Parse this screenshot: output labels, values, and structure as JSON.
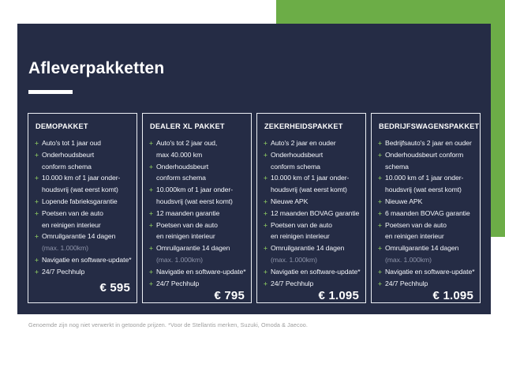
{
  "page": {
    "title": "Afleverpakketten",
    "footnote": "Genoemde zijn nog niet verwerkt in getoonde prijzen. *Voor de Stellantis merken, Suzuki, Omoda & Jaecoo.",
    "colors": {
      "panel_navy": "#252C45",
      "accent_green": "#6CAD47",
      "bullet_green": "#7BAE5C",
      "muted_text": "#8D93A8",
      "text": "#FFFFFF"
    }
  },
  "packages": [
    {
      "name": "DEMOPAKKET",
      "price": "€ 595",
      "items": [
        {
          "text": "Auto's tot 1 jaar oud"
        },
        {
          "text": "Onderhoudsbeurt\nconform schema"
        },
        {
          "text": "10.000 km of 1 jaar onder-\nhoudsvrij (wat eerst komt)"
        },
        {
          "text": "Lopende fabrieksgarantie"
        },
        {
          "text": "Poetsen van de auto\nen reinigen interieur"
        },
        {
          "text": "Omruilgarantie 14 dagen",
          "muted": "(max. 1.000km)"
        },
        {
          "text": "Navigatie en software-update*"
        },
        {
          "text": "24/7 Pechhulp"
        }
      ]
    },
    {
      "name": "DEALER XL PAKKET",
      "price": "€ 795",
      "items": [
        {
          "text": "Auto's tot 2 jaar oud,\nmax 40.000 km"
        },
        {
          "text": "Onderhoudsbeurt\nconform schema"
        },
        {
          "text": "10.000km of 1 jaar onder-\nhoudsvrij (wat eerst komt)"
        },
        {
          "text": "12 maanden garantie"
        },
        {
          "text": "Poetsen van de auto\nen reinigen interieur"
        },
        {
          "text": "Omruilgarantie 14 dagen",
          "muted": "(max. 1.000km)"
        },
        {
          "text": "Navigatie en software-update*"
        },
        {
          "text": "24/7 Pechhulp"
        }
      ]
    },
    {
      "name": "ZEKERHEIDSPAKKET",
      "price": "€ 1.095",
      "items": [
        {
          "text": "Auto's 2 jaar en ouder"
        },
        {
          "text": "Onderhoudsbeurt\nconform schema"
        },
        {
          "text": "10.000 km of 1 jaar onder-\nhoudsvrij (wat eerst komt)"
        },
        {
          "text": "Nieuwe APK"
        },
        {
          "text": "12 maanden BOVAG garantie"
        },
        {
          "text": "Poetsen van de auto\nen reinigen interieur"
        },
        {
          "text": "Omruilgarantie 14 dagen",
          "muted": "(max. 1.000km)"
        },
        {
          "text": "Navigatie en software-update*"
        },
        {
          "text": "24/7 Pechhulp"
        }
      ]
    },
    {
      "name": "BEDRIJFSWAGENSPAKKET",
      "price": "€ 1.095",
      "items": [
        {
          "text": "Bedrijfsauto's 2 jaar en ouder"
        },
        {
          "text": "Onderhoudsbeurt conform\nschema"
        },
        {
          "text": "10.000 km of 1 jaar onder-\nhoudsvrij (wat eerst komt)"
        },
        {
          "text": "Nieuwe APK"
        },
        {
          "text": "6 maanden BOVAG garantie"
        },
        {
          "text": "Poetsen van de auto\nen reinigen interieur"
        },
        {
          "text": "Omruilgarantie 14 dagen",
          "muted": "(max. 1.000km)"
        },
        {
          "text": "Navigatie en software-update*"
        },
        {
          "text": "24/7 Pechhulp"
        }
      ]
    }
  ]
}
